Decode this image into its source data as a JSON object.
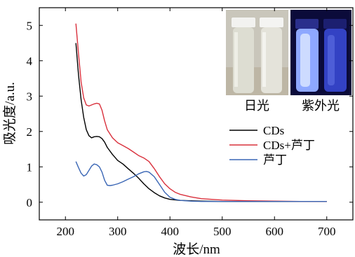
{
  "chart_data": {
    "type": "line",
    "xlabel": "波长/nm",
    "ylabel": "吸光度/a.u.",
    "xlim": [
      150,
      750
    ],
    "ylim": [
      -0.5,
      5.5
    ],
    "xticks": [
      200,
      300,
      400,
      500,
      600,
      700
    ],
    "yticks": [
      0,
      1,
      2,
      3,
      4,
      5
    ],
    "grid": false,
    "legend_position": "center-right",
    "series": [
      {
        "name": "CDs",
        "color": "#000000",
        "x": [
          220,
          225,
          230,
          235,
          240,
          245,
          250,
          255,
          260,
          265,
          270,
          275,
          280,
          290,
          300,
          310,
          320,
          330,
          340,
          350,
          360,
          370,
          380,
          390,
          400,
          420,
          440,
          460,
          500,
          550,
          600,
          650,
          700
        ],
        "y": [
          4.5,
          3.6,
          2.9,
          2.4,
          2.05,
          1.88,
          1.82,
          1.85,
          1.86,
          1.85,
          1.8,
          1.7,
          1.55,
          1.35,
          1.18,
          1.08,
          0.95,
          0.82,
          0.68,
          0.52,
          0.38,
          0.27,
          0.18,
          0.12,
          0.08,
          0.05,
          0.04,
          0.03,
          0.02,
          0.02,
          0.02,
          0.02,
          0.02
        ]
      },
      {
        "name": "CDs+芦丁",
        "color": "#d9303c",
        "x": [
          220,
          225,
          230,
          235,
          240,
          245,
          250,
          255,
          260,
          265,
          270,
          275,
          280,
          290,
          300,
          310,
          320,
          330,
          340,
          350,
          360,
          370,
          380,
          390,
          400,
          410,
          420,
          440,
          460,
          500,
          550,
          600,
          650,
          700
        ],
        "y": [
          5.05,
          4.2,
          3.4,
          2.95,
          2.75,
          2.72,
          2.75,
          2.78,
          2.8,
          2.78,
          2.6,
          2.3,
          2.05,
          1.82,
          1.68,
          1.6,
          1.52,
          1.42,
          1.32,
          1.25,
          1.15,
          0.95,
          0.72,
          0.52,
          0.38,
          0.28,
          0.22,
          0.15,
          0.1,
          0.06,
          0.04,
          0.03,
          0.02,
          0.02
        ]
      },
      {
        "name": "芦丁",
        "color": "#3a66b5",
        "x": [
          220,
          225,
          230,
          235,
          240,
          245,
          250,
          255,
          260,
          265,
          270,
          275,
          280,
          285,
          290,
          300,
          310,
          320,
          330,
          340,
          350,
          355,
          360,
          370,
          380,
          390,
          400,
          410,
          420,
          440,
          460,
          500,
          550,
          600,
          650,
          700
        ],
        "y": [
          1.15,
          0.98,
          0.82,
          0.74,
          0.78,
          0.9,
          1.02,
          1.08,
          1.06,
          1.0,
          0.85,
          0.62,
          0.48,
          0.47,
          0.48,
          0.52,
          0.58,
          0.65,
          0.72,
          0.8,
          0.86,
          0.87,
          0.85,
          0.72,
          0.5,
          0.28,
          0.14,
          0.08,
          0.05,
          0.03,
          0.02,
          0.02,
          0.02,
          0.02,
          0.02,
          0.02
        ]
      }
    ]
  },
  "photo_labels": {
    "daylight": "日光",
    "uv": "紫外光"
  }
}
